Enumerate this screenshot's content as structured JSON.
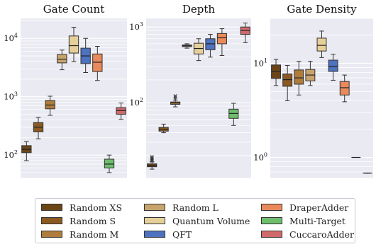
{
  "chart_data": [
    {
      "type": "box",
      "title": "Gate Count",
      "yscale": "log",
      "ylim": [
        40,
        22000
      ],
      "ytick_labels": [
        {
          "value": 100,
          "base": "10",
          "exp": "2"
        },
        {
          "value": 1000,
          "base": "10",
          "exp": "3"
        },
        {
          "value": 10000,
          "base": "10",
          "exp": "4"
        }
      ],
      "series": [
        {
          "name": "Random XS",
          "whislo": 80,
          "q1": 110,
          "med": 125,
          "q3": 145,
          "whishi": 170
        },
        {
          "name": "Random S",
          "whislo": 190,
          "q1": 250,
          "med": 300,
          "q3": 360,
          "whishi": 440
        },
        {
          "name": "Random M",
          "whislo": 480,
          "q1": 620,
          "med": 720,
          "q3": 860,
          "whishi": 1020
        },
        {
          "name": "Random L",
          "whislo": 2900,
          "q1": 3800,
          "med": 4400,
          "q3": 5300,
          "whishi": 6300
        },
        {
          "name": "Quantum Volume",
          "whislo": 4000,
          "q1": 5600,
          "med": 7500,
          "q3": 11000,
          "whishi": 15500
        },
        {
          "name": "QFT",
          "whislo": 2600,
          "q1": 3700,
          "med": 5000,
          "q3": 6800,
          "whishi": 10000
        },
        {
          "name": "DraperAdder",
          "whislo": 1900,
          "q1": 2700,
          "med": 3900,
          "q3": 5400,
          "whishi": 7300
        },
        {
          "name": "Multi-Target",
          "whislo": 50,
          "q1": 60,
          "med": 70,
          "q3": 85,
          "whishi": 100
        },
        {
          "name": "CuccaroAdder",
          "whislo": 410,
          "q1": 500,
          "med": 580,
          "q3": 650,
          "whishi": 780
        }
      ]
    },
    {
      "type": "box",
      "title": "Depth",
      "yscale": "log",
      "ylim": [
        10,
        1300
      ],
      "ytick_labels": [
        {
          "value": 100,
          "base": "10",
          "exp": "2"
        },
        {
          "value": 1000,
          "base": "10",
          "exp": "3"
        }
      ],
      "series": [
        {
          "name": "Random XS",
          "whislo": 13.2,
          "q1": 14.2,
          "med": 14.8,
          "q3": 15.5,
          "whishi": 16.5,
          "fliers": [
            17,
            17.5,
            18,
            18.6,
            19.3
          ]
        },
        {
          "name": "Random S",
          "whislo": 40,
          "q1": 42,
          "med": 44.5,
          "q3": 47,
          "whishi": 52
        },
        {
          "name": "Random M",
          "whislo": 88,
          "q1": 95,
          "med": 99,
          "q3": 102,
          "whishi": 108,
          "fliers": [
            112,
            118,
            123
          ]
        },
        {
          "name": "Random L",
          "whislo": 525,
          "q1": 550,
          "med": 565,
          "q3": 580,
          "whishi": 600
        },
        {
          "name": "Quantum Volume",
          "whislo": 360,
          "q1": 440,
          "med": 520,
          "q3": 610,
          "whishi": 700
        },
        {
          "name": "QFT",
          "whislo": 400,
          "q1": 500,
          "med": 600,
          "q3": 700,
          "whishi": 800
        },
        {
          "name": "DraperAdder",
          "whislo": 420,
          "q1": 600,
          "med": 720,
          "q3": 820,
          "whishi": 950
        },
        {
          "name": "Multi-Target",
          "whislo": 50,
          "q1": 62,
          "med": 72,
          "q3": 82,
          "whishi": 98
        },
        {
          "name": "CuccaroAdder",
          "whislo": 620,
          "q1": 800,
          "med": 900,
          "q3": 1000,
          "whishi": 1130
        }
      ]
    },
    {
      "type": "box",
      "title": "Gate Density",
      "yscale": "log",
      "ylim": [
        0.6,
        30
      ],
      "ytick_labels": [
        {
          "value": 1,
          "base": "10",
          "exp": "0"
        },
        {
          "value": 10,
          "base": "10",
          "exp": "1"
        }
      ],
      "series": [
        {
          "name": "Random XS",
          "whislo": 5.8,
          "q1": 6.9,
          "med": 8.2,
          "q3": 9.6,
          "whishi": 11.0
        },
        {
          "name": "Random S",
          "whislo": 4.0,
          "q1": 5.7,
          "med": 6.7,
          "q3": 7.7,
          "whishi": 9.5
        },
        {
          "name": "Random M",
          "whislo": 4.6,
          "q1": 6.0,
          "med": 7.0,
          "q3": 8.5,
          "whishi": 10.5
        },
        {
          "name": "Random L",
          "whislo": 5.8,
          "q1": 6.5,
          "med": 7.5,
          "q3": 8.6,
          "whishi": 10.5
        },
        {
          "name": "Quantum Volume",
          "whislo": 11.5,
          "q1": 13.5,
          "med": 15.5,
          "q3": 18.5,
          "whishi": 22.0
        },
        {
          "name": "QFT",
          "whislo": 6.6,
          "q1": 8.2,
          "med": 9.3,
          "q3": 10.8,
          "whishi": 12.5
        },
        {
          "name": "DraperAdder",
          "whislo": 3.9,
          "q1": 4.6,
          "med": 5.5,
          "q3": 6.4,
          "whishi": 7.5
        },
        {
          "name": "Multi-Target",
          "whislo": 1.0,
          "q1": 1.0,
          "med": 1.0,
          "q3": 1.0,
          "whishi": 1.0
        },
        {
          "name": "CuccaroAdder",
          "whislo": 0.68,
          "q1": 0.68,
          "med": 0.68,
          "q3": 0.68,
          "whishi": 0.68
        }
      ]
    }
  ],
  "colors": {
    "Random XS": "#6b4516",
    "Random S": "#8a5a22",
    "Random M": "#ae7d3c",
    "Random L": "#c8a46d",
    "Quantum Volume": "#e5cf9b",
    "QFT": "#4d72bf",
    "DraperAdder": "#e88a5b",
    "Multi-Target": "#6fbe6d",
    "CuccaroAdder": "#d06a6a",
    "axes_bg": "#eaeaf2",
    "grid": "#ffffff"
  },
  "legend": {
    "placement": "bottom",
    "columns": 3,
    "entries": [
      "Random XS",
      "Random S",
      "Random M",
      "Random L",
      "Quantum Volume",
      "QFT",
      "DraperAdder",
      "Multi-Target",
      "CuccaroAdder"
    ]
  }
}
